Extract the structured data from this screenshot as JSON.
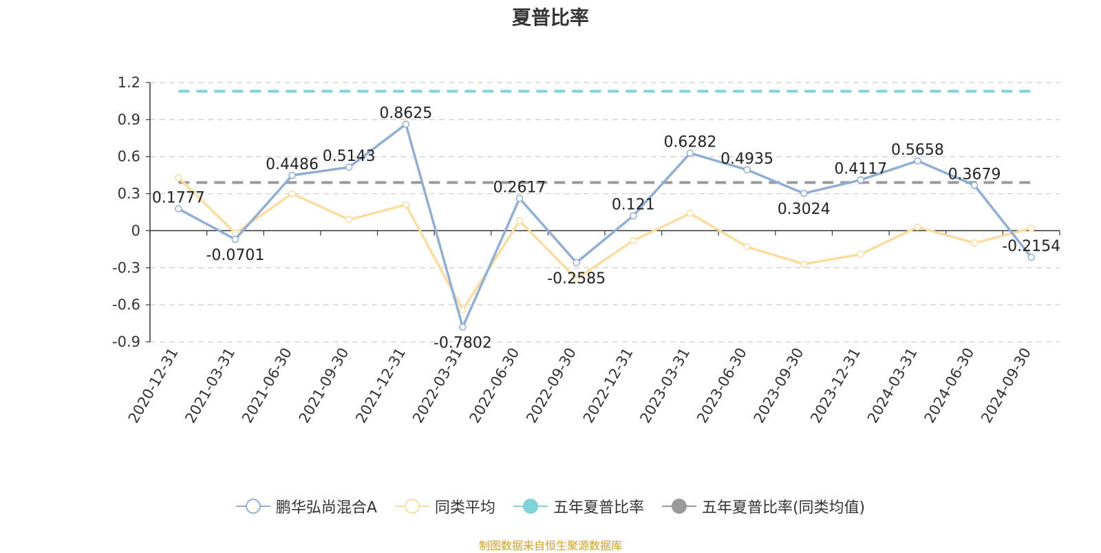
{
  "title": "夏普比率",
  "source_note": "制图数据来自恒生聚源数据库",
  "colors": {
    "fund": "#8eaed8",
    "peer": "#fcdc9c",
    "five_year": "#7ed3d6",
    "five_year_peer": "#9a9a9a",
    "axis": "#333333",
    "grid": "#cccccc"
  },
  "legend": [
    {
      "label": "鹏华弘尚混合A",
      "color": "#8eaed8",
      "style": "hollow"
    },
    {
      "label": "同类平均",
      "color": "#fcdc9c",
      "style": "hollow"
    },
    {
      "label": "五年夏普比率",
      "color": "#7ed3d6",
      "style": "filled"
    },
    {
      "label": "五年夏普比率(同类均值)",
      "color": "#9a9a9a",
      "style": "filled"
    }
  ],
  "chart_data": {
    "type": "line",
    "title": "夏普比率",
    "categories": [
      "2020-12-31",
      "2021-03-31",
      "2021-06-30",
      "2021-09-30",
      "2021-12-31",
      "2022-03-31",
      "2022-06-30",
      "2022-09-30",
      "2022-12-31",
      "2023-03-31",
      "2023-06-30",
      "2023-09-30",
      "2023-12-31",
      "2024-03-31",
      "2024-06-30",
      "2024-09-30"
    ],
    "ylim": [
      -0.9,
      1.2
    ],
    "yticks": [
      "1.2",
      "0.9",
      "0.6",
      "0.3",
      "0",
      "-0.3",
      "-0.6",
      "-0.9"
    ],
    "grid": true,
    "legend_position": "bottom",
    "series": [
      {
        "name": "鹏华弘尚混合A",
        "values": [
          0.1777,
          -0.0701,
          0.4486,
          0.5143,
          0.8625,
          -0.7802,
          0.2617,
          -0.2585,
          0.121,
          0.6282,
          0.4935,
          0.3024,
          0.4117,
          0.5658,
          0.3679,
          -0.2154
        ],
        "labels": [
          "0.1777",
          "-0.0701",
          "0.4486",
          "0.5143",
          "0.8625",
          "-0.7802",
          "0.2617",
          "-0.2585",
          "0.121",
          "0.6282",
          "0.4935",
          "0.3024",
          "0.4117",
          "0.5658",
          "0.3679",
          "-0.2154"
        ]
      },
      {
        "name": "同类平均",
        "values": [
          0.43,
          -0.02,
          0.3,
          0.09,
          0.21,
          -0.64,
          0.08,
          -0.39,
          -0.08,
          0.14,
          -0.13,
          -0.27,
          -0.19,
          0.03,
          -0.1,
          0.02
        ]
      },
      {
        "name": "五年夏普比率",
        "constant": 1.13
      },
      {
        "name": "五年夏普比率(同类均值)",
        "constant": 0.39
      }
    ]
  }
}
